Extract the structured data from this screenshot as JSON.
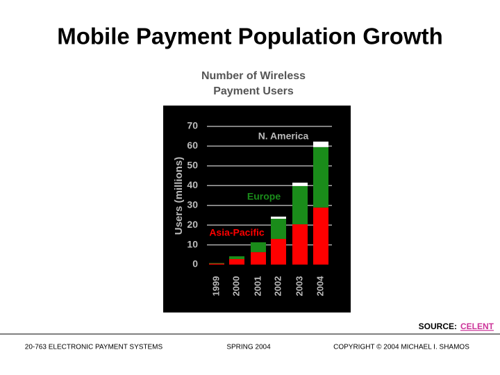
{
  "slide": {
    "title": "Mobile Payment Population Growth",
    "source_label": "SOURCE:",
    "source_name": "CELENT",
    "footer": [
      "20-763 ELECTRONIC PAYMENT SYSTEMS",
      "SPRING 2004",
      "COPYRIGHT © 2004 MICHAEL I. SHAMOS"
    ]
  },
  "chart_data": {
    "type": "stacked_bar",
    "title": "Number of Wireless Payment Users",
    "y_label": "Users (millions)",
    "categories": [
      "1999",
      "2000",
      "2001",
      "2002",
      "2003",
      "2004"
    ],
    "series": [
      {
        "name": "Asia-Pacific",
        "color": "#ff0000",
        "values": [
          0.5,
          2.8,
          6.3,
          13,
          20.4,
          28.9
        ]
      },
      {
        "name": "Europe",
        "color": "#1a8c1a",
        "values": [
          0.3,
          1.4,
          5,
          10.2,
          19.4,
          30.6
        ]
      },
      {
        "name": "N. America",
        "color": "#ffffff",
        "values": [
          0,
          0,
          0,
          1.1,
          1.7,
          2.8
        ]
      }
    ],
    "ylim": [
      0,
      70
    ],
    "yticks": [
      0,
      10,
      20,
      30,
      40,
      50,
      60,
      70
    ],
    "grid": true
  }
}
